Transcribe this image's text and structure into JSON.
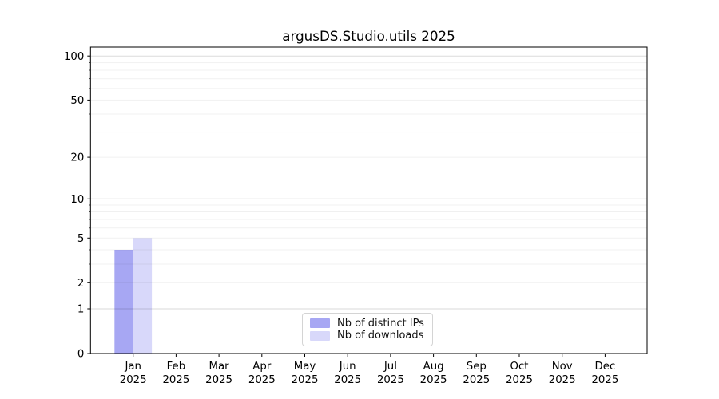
{
  "chart_data": {
    "type": "bar",
    "title": "argusDS.Studio.utils 2025",
    "x_categories": [
      "Jan 2025",
      "Feb 2025",
      "Mar 2025",
      "Apr 2025",
      "May 2025",
      "Jun 2025",
      "Jul 2025",
      "Aug 2025",
      "Sep 2025",
      "Oct 2025",
      "Nov 2025",
      "Dec 2025"
    ],
    "x_tick_months": [
      "Jan",
      "Feb",
      "Mar",
      "Apr",
      "May",
      "Jun",
      "Jul",
      "Aug",
      "Sep",
      "Oct",
      "Nov",
      "Dec"
    ],
    "x_tick_year": "2025",
    "series": [
      {
        "name": "Nb of distinct IPs",
        "color": "#a7a7f3",
        "values": [
          4,
          0,
          0,
          0,
          0,
          0,
          0,
          0,
          0,
          0,
          0,
          0
        ]
      },
      {
        "name": "Nb of downloads",
        "color": "#d8d8fa",
        "values": [
          5,
          0,
          0,
          0,
          0,
          0,
          0,
          0,
          0,
          0,
          0,
          0
        ]
      }
    ],
    "y_scale": "log1p",
    "y_tick_labels": [
      0,
      1,
      2,
      5,
      10,
      20,
      50,
      100
    ],
    "y_minor_gridlines": [
      3,
      4,
      6,
      7,
      8,
      9,
      30,
      40,
      60,
      70,
      80,
      90
    ],
    "y_labeled_minor_ticks": [
      2,
      5,
      20,
      50
    ],
    "ylim": [
      0,
      115
    ],
    "xlim_months": [
      -1,
      12
    ],
    "grid": "horizontal",
    "legend_position": "lower-center-inside",
    "axis_color": "#000000",
    "major_grid_color": "#dadada",
    "minor_grid_color": "#f0f0f0"
  }
}
